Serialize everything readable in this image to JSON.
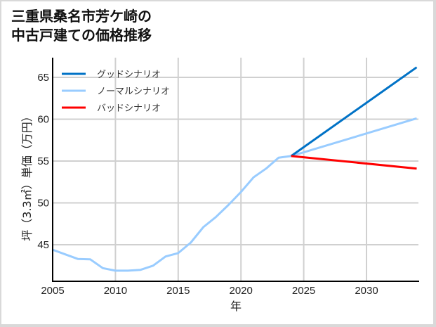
{
  "title_line1": "三重県桑名市芳ケ崎の",
  "title_line2": "中古戸建ての価格推移",
  "chart_data": {
    "type": "line",
    "title": "三重県桑名市芳ケ崎の中古戸建ての価格推移",
    "xlabel": "年",
    "ylabel": "坪（3.3㎡）単価（万円）",
    "xlim": [
      2005,
      2034
    ],
    "ylim": [
      40.8,
      67.5
    ],
    "grid": true,
    "legend_position": "upper left",
    "x_ticks": [
      2005,
      2010,
      2015,
      2020,
      2025,
      2030
    ],
    "y_ticks": [
      45,
      50,
      55,
      60,
      65
    ],
    "series": [
      {
        "name": "グッドシナリオ",
        "color": "#0072c6",
        "x": [
          2024,
          2034
        ],
        "values": [
          55.6,
          66.2
        ]
      },
      {
        "name": "ノーマルシナリオ",
        "color": "#99ccff",
        "x": [
          2005,
          2006,
          2007,
          2008,
          2009,
          2010,
          2011,
          2012,
          2013,
          2014,
          2015,
          2016,
          2017,
          2018,
          2019,
          2020,
          2021,
          2022,
          2023,
          2024,
          2034
        ],
        "values": [
          44.4,
          43.85,
          43.3,
          43.25,
          42.2,
          41.9,
          41.9,
          42.0,
          42.5,
          43.6,
          44.0,
          45.25,
          47.1,
          48.3,
          49.75,
          51.3,
          53.05,
          54.1,
          55.4,
          55.6,
          60.1
        ]
      },
      {
        "name": "バッドシナリオ",
        "color": "#ff0000",
        "x": [
          2024,
          2034
        ],
        "values": [
          55.6,
          54.1
        ]
      }
    ]
  },
  "legend": [
    {
      "label": "グッドシナリオ",
      "color": "#0072c6"
    },
    {
      "label": "ノーマルシナリオ",
      "color": "#99ccff"
    },
    {
      "label": "バッドシナリオ",
      "color": "#ff0000"
    }
  ],
  "axes": {
    "xlabel": "年",
    "ylabel": "坪（3.3㎡）単価（万円）",
    "x_ticks": [
      "2005",
      "2010",
      "2015",
      "2020",
      "2025",
      "2030"
    ],
    "y_ticks": [
      "45",
      "50",
      "55",
      "60",
      "65"
    ]
  }
}
